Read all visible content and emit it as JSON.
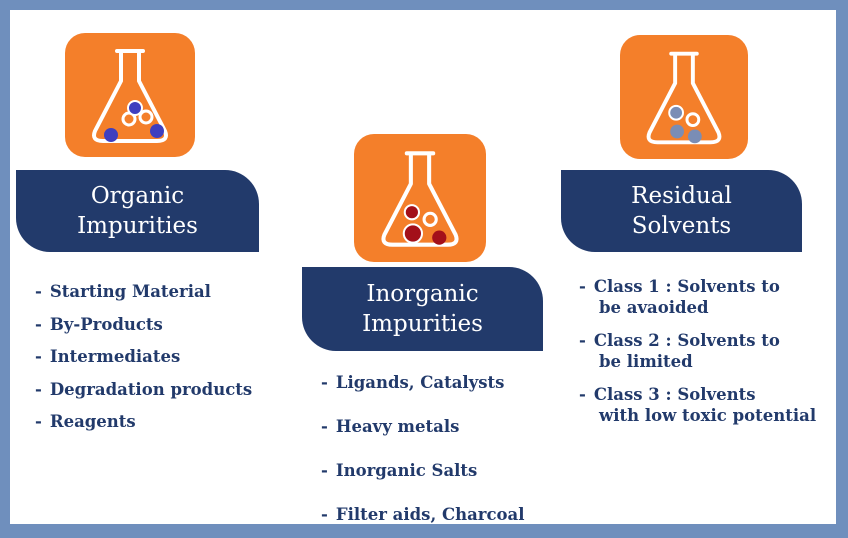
{
  "columns": [
    {
      "title_line1": "Organic",
      "title_line2": "Impurities",
      "icon": "flask-icon",
      "items": [
        "Starting Material",
        "By-Products",
        "Intermediates",
        "Degradation products",
        "Reagents"
      ]
    },
    {
      "title_line1": "Inorganic",
      "title_line2": "Impurities",
      "icon": "flask-icon",
      "items": [
        "Ligands, Catalysts",
        "Heavy metals",
        "Inorganic Salts",
        "Filter aids, Charcoal"
      ]
    },
    {
      "title_line1": "Residual",
      "title_line2": "Solvents",
      "icon": "flask-icon",
      "items": [
        {
          "line1": "Class 1 : Solvents to",
          "line2": "be avaoided"
        },
        {
          "line1": "Class 2 : Solvents to",
          "line2": "be limited"
        },
        {
          "line1": "Class 3 : Solvents",
          "line2": "with low toxic potential"
        }
      ]
    }
  ],
  "dash": "-",
  "colors": {
    "background_border": "#6f8fbd",
    "icon_orange": "#f47f2a",
    "banner_navy": "#223a6b",
    "text_navy": "#223a6b",
    "dot_blue": "#3f3fbf",
    "dot_red": "#a3101a",
    "dot_gray": "#7a8db5"
  }
}
